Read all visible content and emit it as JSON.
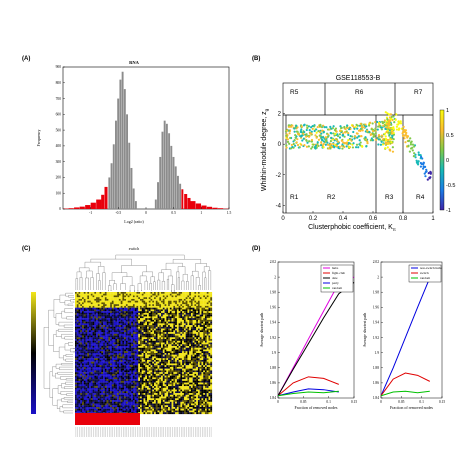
{
  "panels": {
    "A": {
      "label": "(A)",
      "chart_data": {
        "type": "bar",
        "title": "RNA",
        "xlabel": "Log2 (ratio)",
        "ylabel": "Frequency",
        "xlim": [
          -1.5,
          1.5
        ],
        "ylim": [
          0,
          900
        ],
        "xticks": [
          "-1",
          "-0.5",
          "0",
          "0.5",
          "1",
          "1.5"
        ],
        "yticks": [
          "0",
          "100",
          "200",
          "300",
          "400",
          "500",
          "600",
          "700",
          "800",
          "900"
        ],
        "colors": {
          "center": "#8c8c8c",
          "tails": "#e8000b"
        },
        "bins": [
          {
            "x": -1.45,
            "v": 3,
            "tail": true
          },
          {
            "x": -1.35,
            "v": 5,
            "tail": true
          },
          {
            "x": -1.25,
            "v": 10,
            "tail": true
          },
          {
            "x": -1.15,
            "v": 15,
            "tail": true
          },
          {
            "x": -1.05,
            "v": 25,
            "tail": true
          },
          {
            "x": -0.95,
            "v": 40,
            "tail": true
          },
          {
            "x": -0.85,
            "v": 60,
            "tail": true
          },
          {
            "x": -0.78,
            "v": 90,
            "tail": true
          },
          {
            "x": -0.72,
            "v": 140,
            "tail": true
          },
          {
            "x": -0.66,
            "v": 200,
            "tail": false
          },
          {
            "x": -0.62,
            "v": 290,
            "tail": false
          },
          {
            "x": -0.58,
            "v": 410,
            "tail": false
          },
          {
            "x": -0.54,
            "v": 560,
            "tail": false
          },
          {
            "x": -0.5,
            "v": 700,
            "tail": false
          },
          {
            "x": -0.46,
            "v": 820,
            "tail": false
          },
          {
            "x": -0.42,
            "v": 870,
            "tail": false
          },
          {
            "x": -0.38,
            "v": 760,
            "tail": false
          },
          {
            "x": -0.34,
            "v": 600,
            "tail": false
          },
          {
            "x": -0.3,
            "v": 420,
            "tail": false
          },
          {
            "x": -0.26,
            "v": 260,
            "tail": false
          },
          {
            "x": -0.22,
            "v": 130,
            "tail": false
          },
          {
            "x": -0.18,
            "v": 50,
            "tail": false
          },
          {
            "x": 0.18,
            "v": 60,
            "tail": false
          },
          {
            "x": 0.22,
            "v": 170,
            "tail": false
          },
          {
            "x": 0.26,
            "v": 330,
            "tail": false
          },
          {
            "x": 0.3,
            "v": 490,
            "tail": false
          },
          {
            "x": 0.34,
            "v": 560,
            "tail": false
          },
          {
            "x": 0.38,
            "v": 540,
            "tail": false
          },
          {
            "x": 0.42,
            "v": 480,
            "tail": false
          },
          {
            "x": 0.46,
            "v": 400,
            "tail": false
          },
          {
            "x": 0.5,
            "v": 330,
            "tail": false
          },
          {
            "x": 0.54,
            "v": 270,
            "tail": false
          },
          {
            "x": 0.58,
            "v": 210,
            "tail": false
          },
          {
            "x": 0.62,
            "v": 160,
            "tail": false
          },
          {
            "x": 0.66,
            "v": 125,
            "tail": true
          },
          {
            "x": 0.72,
            "v": 95,
            "tail": true
          },
          {
            "x": 0.78,
            "v": 70,
            "tail": true
          },
          {
            "x": 0.85,
            "v": 50,
            "tail": true
          },
          {
            "x": 0.95,
            "v": 35,
            "tail": true
          },
          {
            "x": 1.05,
            "v": 22,
            "tail": true
          },
          {
            "x": 1.15,
            "v": 14,
            "tail": true
          },
          {
            "x": 1.25,
            "v": 8,
            "tail": true
          },
          {
            "x": 1.35,
            "v": 5,
            "tail": true
          },
          {
            "x": 1.45,
            "v": 2,
            "tail": true
          }
        ]
      }
    },
    "B": {
      "label": "(B)",
      "chart_data": {
        "type": "scatter",
        "title": "GSE118553-B",
        "xlabel": "Clusterphobic coefficient, K",
        "xlabel_sub": "π",
        "ylabel": "Whithin-module degree, z",
        "ylabel_sub": "g",
        "xlim": [
          0,
          1
        ],
        "ylim": [
          -4.5,
          4
        ],
        "xticks": [
          "0",
          "0.2",
          "0.4",
          "0.6",
          "0.8",
          "1"
        ],
        "yticks": [
          "-4",
          "-2",
          "0",
          "2"
        ],
        "colorbar_ticks": [
          "1",
          "0.5",
          "0",
          "-0.5",
          "-1"
        ],
        "regions": [
          "R1",
          "R2",
          "R3",
          "R4",
          "R5",
          "R6",
          "R7"
        ],
        "points": {
          "main_band": {
            "x_range": [
              0.02,
              0.75
            ],
            "y_center": 0.5,
            "y_spread": 0.8,
            "n": 520
          },
          "vertical_cluster": {
            "x_range": [
              0.68,
              0.74
            ],
            "y_range": [
              -0.5,
              2.1
            ],
            "n": 70
          },
          "tail": {
            "x_range": [
              0.75,
              0.99
            ],
            "y_start": 1.6,
            "y_end": -2.4,
            "n": 90
          }
        }
      }
    },
    "C": {
      "label": "(C)",
      "title": "switch",
      "colormap": [
        "#1a10c8",
        "#0a0a40",
        "#000000",
        "#5a5000",
        "#f2e61a"
      ],
      "rows": 70,
      "cols": 78,
      "red_band_label": ""
    },
    "D": {
      "label": "(D)",
      "ylabel": "Average shortest path",
      "xlabel": "Fraction of removed nodes",
      "chart_data": [
        {
          "type": "line",
          "xlim": [
            0,
            0.15
          ],
          "ylim": [
            1.84,
            2.02
          ],
          "xticks": [
            "0",
            "0.05",
            "0.1",
            "0.15"
          ],
          "yticks": [
            "1.84",
            "1.86",
            "1.88",
            "1.9",
            "1.92",
            "1.94",
            "1.96",
            "1.98",
            "2",
            "2.02"
          ],
          "series": [
            {
              "name": "hubs",
              "color": "#e000e0",
              "x": [
                0,
                0.03,
                0.06,
                0.09,
                0.12,
                0.15
              ],
              "y": [
                1.843,
                1.88,
                1.918,
                1.955,
                1.992,
                2.0
              ]
            },
            {
              "name": "fight-club",
              "color": "#e00000",
              "x": [
                0,
                0.03,
                0.06,
                0.09,
                0.12
              ],
              "y": [
                1.843,
                1.86,
                1.868,
                1.866,
                1.858
              ]
            },
            {
              "name": "date",
              "color": "#000000",
              "x": [
                0,
                0.03,
                0.06,
                0.09,
                0.12,
                0.15
              ],
              "y": [
                1.843,
                1.878,
                1.912,
                1.946,
                1.978,
                1.993
              ]
            },
            {
              "name": "party",
              "color": "#0000e0",
              "x": [
                0,
                0.03,
                0.06,
                0.09,
                0.12
              ],
              "y": [
                1.843,
                1.848,
                1.852,
                1.851,
                1.848
              ]
            },
            {
              "name": "random",
              "color": "#00c000",
              "x": [
                0,
                0.03,
                0.06,
                0.09,
                0.12
              ],
              "y": [
                1.843,
                1.846,
                1.848,
                1.847,
                1.849
              ]
            }
          ]
        },
        {
          "type": "line",
          "xlim": [
            0,
            0.15
          ],
          "ylim": [
            1.84,
            2.02
          ],
          "xticks": [
            "0",
            "0.05",
            "0.1",
            "0.15"
          ],
          "yticks": [
            "1.84",
            "1.86",
            "1.88",
            "1.9",
            "1.92",
            "1.94",
            "1.96",
            "1.98",
            "2",
            "2.02"
          ],
          "series": [
            {
              "name": "non-switch hubs",
              "color": "#0000e0",
              "x": [
                0,
                0.03,
                0.06,
                0.09,
                0.12
              ],
              "y": [
                1.843,
                1.88,
                1.92,
                1.96,
                1.999
              ]
            },
            {
              "name": "switch",
              "color": "#e00000",
              "x": [
                0,
                0.03,
                0.06,
                0.09,
                0.12
              ],
              "y": [
                1.843,
                1.865,
                1.873,
                1.87,
                1.862
              ]
            },
            {
              "name": "random",
              "color": "#00c000",
              "x": [
                0,
                0.03,
                0.06,
                0.09,
                0.12
              ],
              "y": [
                1.843,
                1.848,
                1.849,
                1.847,
                1.849
              ]
            }
          ]
        }
      ]
    }
  }
}
